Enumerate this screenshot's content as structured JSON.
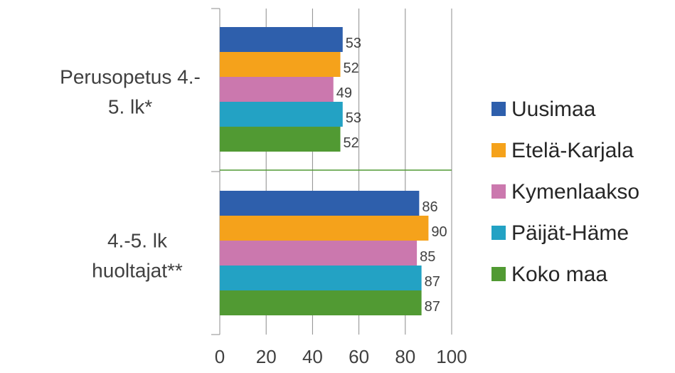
{
  "chart_data": {
    "type": "bar",
    "orientation": "horizontal",
    "categories": [
      {
        "lines": [
          "Perusopetus 4.-",
          "5. lk*"
        ]
      },
      {
        "lines": [
          "4.-5. lk",
          "huoltajat**"
        ]
      }
    ],
    "series": [
      {
        "name": "Uusimaa",
        "color": "#2E5FAC",
        "values": [
          53,
          86
        ]
      },
      {
        "name": "Etelä-Karjala",
        "color": "#F5A21B",
        "values": [
          52,
          90
        ]
      },
      {
        "name": "Kymenlaakso",
        "color": "#CB78AE",
        "values": [
          49,
          85
        ]
      },
      {
        "name": "Päijät-Häme",
        "color": "#23A2C4",
        "values": [
          53,
          87
        ]
      },
      {
        "name": "Koko maa",
        "color": "#519A33",
        "values": [
          52,
          87
        ]
      }
    ],
    "xticks": [
      "0",
      "20",
      "40",
      "60",
      "80",
      "100"
    ],
    "xlim": [
      0,
      100
    ],
    "grid": true,
    "legend_position": "right",
    "separator_color": "#519A33"
  }
}
